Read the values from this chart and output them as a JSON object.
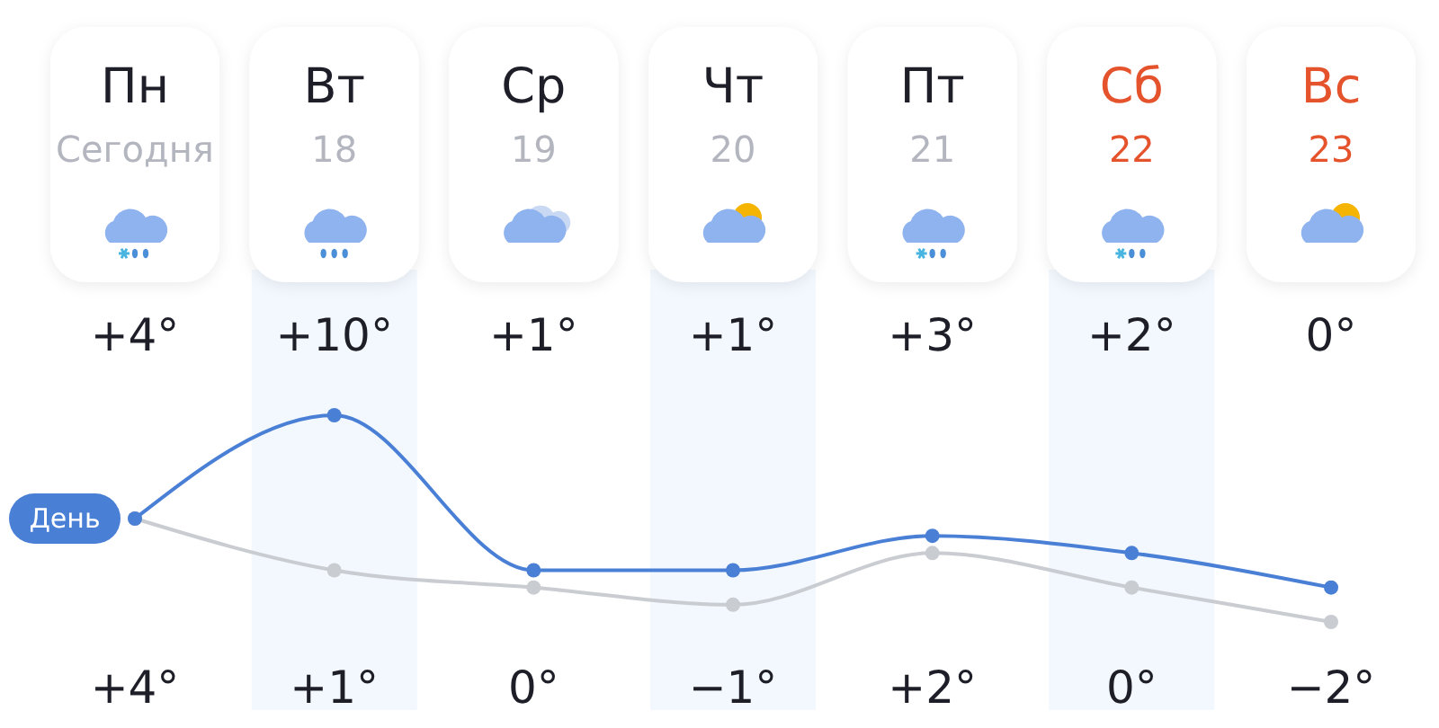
{
  "chart_data": {
    "type": "line",
    "categories": [
      "Пн\nСегодня",
      "Вт\n18",
      "Ср\n19",
      "Чт\n20",
      "Пт\n21",
      "Сб\n22",
      "Вс\n23"
    ],
    "series": [
      {
        "name": "День",
        "color": "#4a7fd6",
        "values": [
          4,
          10,
          1,
          1,
          3,
          2,
          0
        ],
        "value_labels": [
          "+4°",
          "+10°",
          "+1°",
          "+1°",
          "+3°",
          "+2°",
          "0°"
        ]
      },
      {
        "color": "#c9ccd1",
        "values": [
          4,
          1,
          0,
          -1,
          2,
          0,
          -2
        ],
        "value_labels": [
          "+4°",
          "+1°",
          "0°",
          "−1°",
          "+2°",
          "0°",
          "−2°"
        ]
      }
    ],
    "marker": "circle",
    "line_style": "solid"
  }
}
